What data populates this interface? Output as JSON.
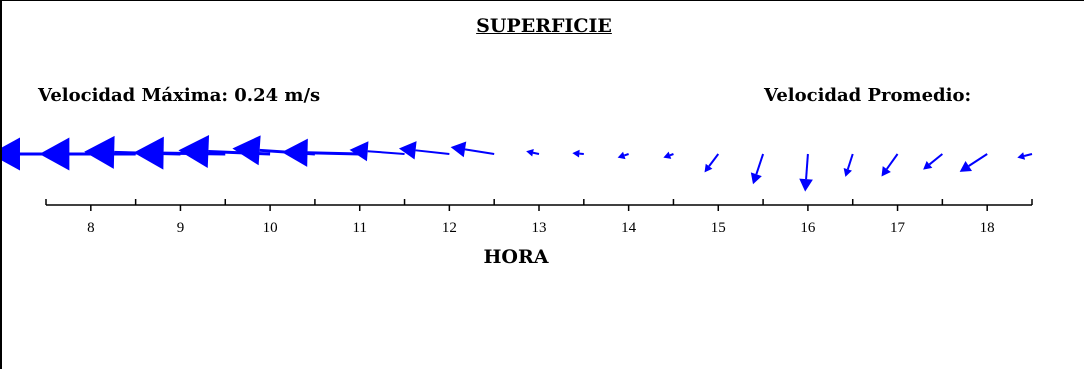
{
  "chart_data": {
    "type": "vector",
    "title": "SUPERFICIE",
    "max_speed_label": "Velocidad Máxima: 0.24 m/s",
    "avg_speed_label": "Velocidad Promedio:",
    "xlabel": "HORA",
    "xlim": [
      7.5,
      18.5
    ],
    "xticks": [
      8,
      9,
      10,
      11,
      12,
      13,
      14,
      15,
      16,
      17,
      18
    ],
    "tick_labels": [
      "8",
      "9",
      "10",
      "11",
      "12",
      "13",
      "14",
      "15",
      "16",
      "17",
      "18"
    ],
    "minor_ticks": [
      7.5,
      8.5,
      9.5,
      10.5,
      11.5,
      12.5,
      13.5,
      14.5,
      15.5,
      16.5,
      17.5,
      18.5
    ],
    "max_speed": 0.24,
    "units": "m/s",
    "vectors": [
      {
        "hora": 7.5,
        "u": -0.24,
        "v": 0.0
      },
      {
        "hora": 8.0,
        "u": -0.22,
        "v": 0.0
      },
      {
        "hora": 8.5,
        "u": -0.21,
        "v": 0.0
      },
      {
        "hora": 9.0,
        "u": -0.21,
        "v": 0.005
      },
      {
        "hora": 9.5,
        "u": -0.2,
        "v": 0.003
      },
      {
        "hora": 10.0,
        "u": -0.2,
        "v": 0.008
      },
      {
        "hora": 10.5,
        "u": -0.18,
        "v": 0.012
      },
      {
        "hora": 11.0,
        "u": -0.17,
        "v": 0.004
      },
      {
        "hora": 11.5,
        "u": -0.12,
        "v": 0.009
      },
      {
        "hora": 12.0,
        "u": -0.11,
        "v": 0.012
      },
      {
        "hora": 12.5,
        "u": -0.095,
        "v": 0.015
      },
      {
        "hora": 13.0,
        "u": -0.028,
        "v": 0.006
      },
      {
        "hora": 13.5,
        "u": -0.025,
        "v": 0.002
      },
      {
        "hora": 14.0,
        "u": -0.024,
        "v": -0.008
      },
      {
        "hora": 14.5,
        "u": -0.022,
        "v": -0.008
      },
      {
        "hora": 15.0,
        "u": -0.03,
        "v": -0.04
      },
      {
        "hora": 15.5,
        "u": -0.022,
        "v": -0.066
      },
      {
        "hora": 16.0,
        "u": -0.006,
        "v": -0.082
      },
      {
        "hora": 16.5,
        "u": -0.016,
        "v": -0.05
      },
      {
        "hora": 17.0,
        "u": -0.035,
        "v": -0.049
      },
      {
        "hora": 17.5,
        "u": -0.042,
        "v": -0.034
      },
      {
        "hora": 18.0,
        "u": -0.06,
        "v": -0.039
      },
      {
        "hora": 18.5,
        "u": -0.032,
        "v": -0.008
      }
    ],
    "color": "#0000ff",
    "axis_color": "#000000"
  }
}
